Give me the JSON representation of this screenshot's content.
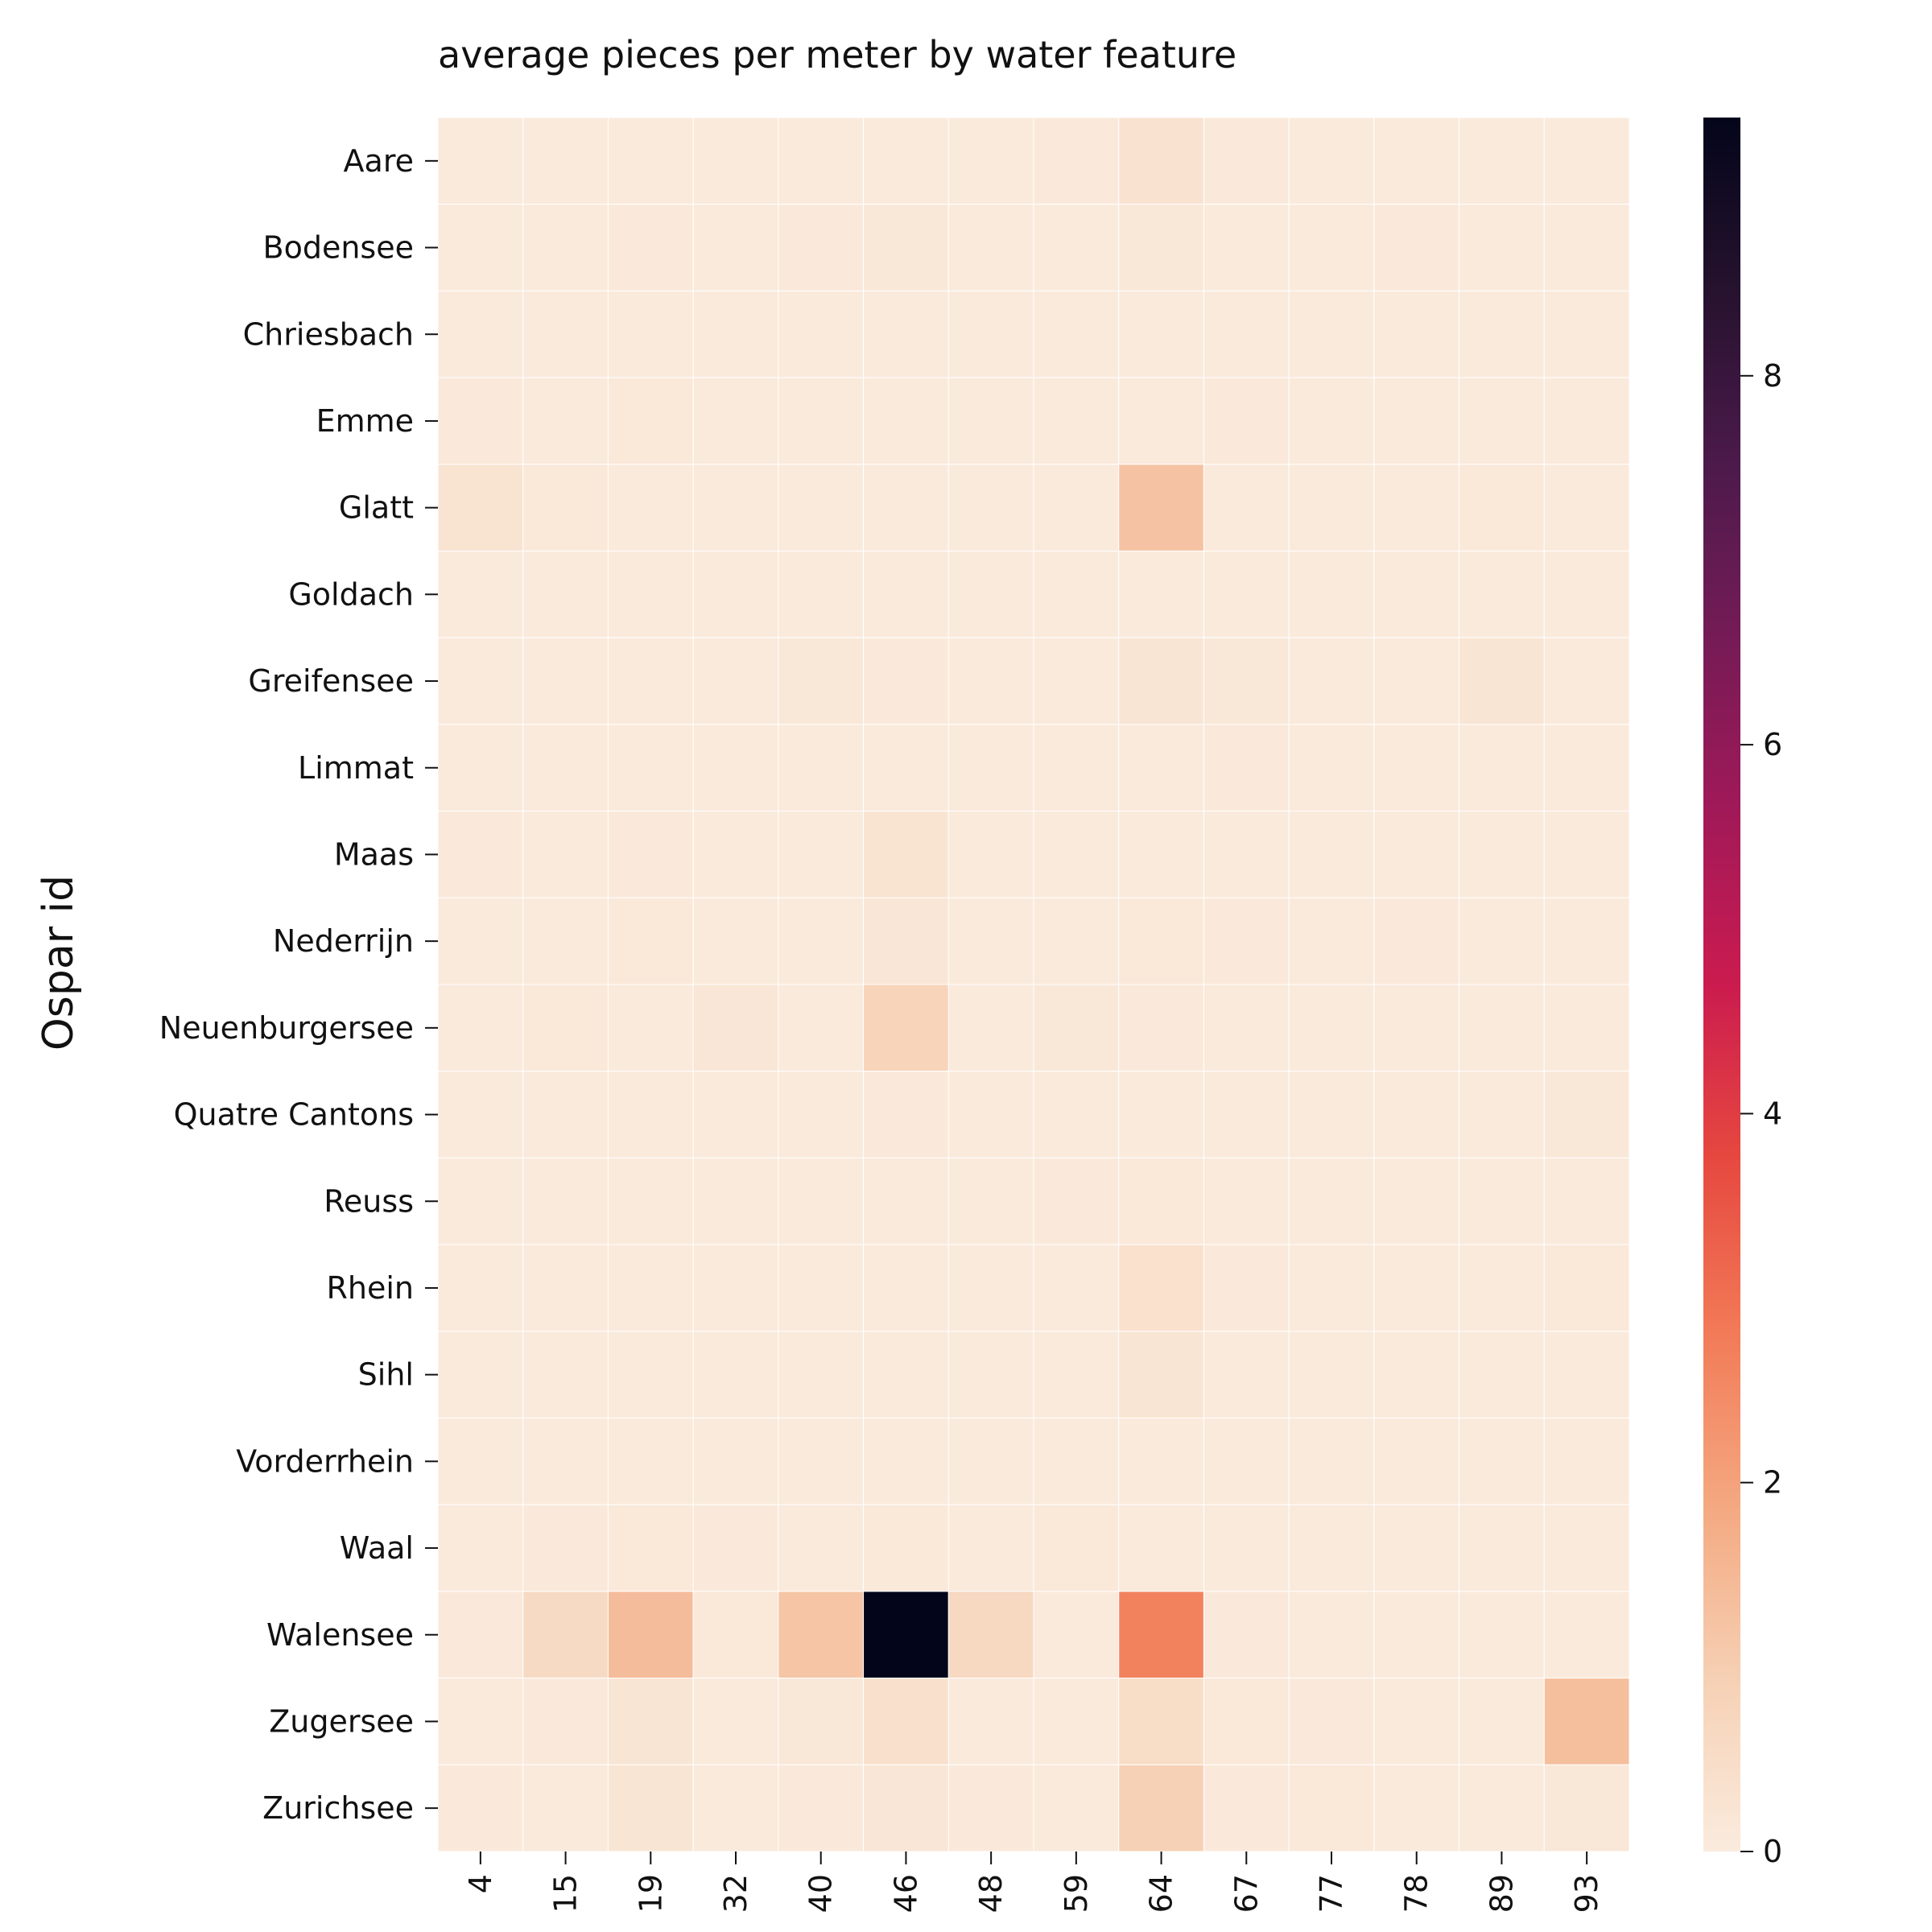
{
  "chart_data": {
    "type": "heatmap",
    "title": "average pieces per meter by water feature",
    "xlabel": "",
    "ylabel": "Ospar id",
    "x_categories": [
      "4",
      "15",
      "19",
      "32",
      "40",
      "46",
      "48",
      "59",
      "64",
      "67",
      "77",
      "78",
      "89",
      "93"
    ],
    "y_categories": [
      "Aare",
      "Bodensee",
      "Chriesbach",
      "Emme",
      "Glatt",
      "Goldach",
      "Greifensee",
      "Limmat",
      "Maas",
      "Nederrijn",
      "Neuenburgersee",
      "Quatre Cantons",
      "Reuss",
      "Rhein",
      "Sihl",
      "Vorderrhein",
      "Waal",
      "Walensee",
      "Zugersee",
      "Zurichsee"
    ],
    "values": [
      [
        0.02,
        0.02,
        0.02,
        0.02,
        0.02,
        0.03,
        0.02,
        0.06,
        0.3,
        0.08,
        0.02,
        0.02,
        0.03,
        0.02
      ],
      [
        0.03,
        0.04,
        0.06,
        0.03,
        0.08,
        0.12,
        0.03,
        0.03,
        0.12,
        0.03,
        0.03,
        0.07,
        0.03,
        0.02
      ],
      [
        0.02,
        0.02,
        0.02,
        0.02,
        0.02,
        0.02,
        0.02,
        0.02,
        0.03,
        0.02,
        0.02,
        0.02,
        0.02,
        0.02
      ],
      [
        0.08,
        0.03,
        0.1,
        0.02,
        0.02,
        0.04,
        0.02,
        0.02,
        0.03,
        0.06,
        0.02,
        0.02,
        0.02,
        0.02
      ],
      [
        0.25,
        0.1,
        0.02,
        0.02,
        0.02,
        0.02,
        0.02,
        0.02,
        1.25,
        0.02,
        0.02,
        0.02,
        0.1,
        0.02
      ],
      [
        0.02,
        0.02,
        0.02,
        0.02,
        0.02,
        0.02,
        0.02,
        0.02,
        0.02,
        0.02,
        0.02,
        0.02,
        0.02,
        0.04
      ],
      [
        0.02,
        0.02,
        0.03,
        0.02,
        0.12,
        0.08,
        0.02,
        0.03,
        0.2,
        0.12,
        0.04,
        0.02,
        0.22,
        0.02
      ],
      [
        0.02,
        0.02,
        0.02,
        0.02,
        0.02,
        0.02,
        0.02,
        0.02,
        0.03,
        0.07,
        0.02,
        0.02,
        0.02,
        0.02
      ],
      [
        0.06,
        0.04,
        0.08,
        0.02,
        0.03,
        0.25,
        0.02,
        0.02,
        0.03,
        0.03,
        0.02,
        0.04,
        0.02,
        0.02
      ],
      [
        0.04,
        0.04,
        0.1,
        0.04,
        0.03,
        0.16,
        0.02,
        0.03,
        0.1,
        0.06,
        0.02,
        0.06,
        0.02,
        0.02
      ],
      [
        0.02,
        0.09,
        0.04,
        0.16,
        0.04,
        0.8,
        0.02,
        0.12,
        0.08,
        0.04,
        0.02,
        0.02,
        0.02,
        0.03
      ],
      [
        0.02,
        0.02,
        0.02,
        0.02,
        0.02,
        0.08,
        0.02,
        0.02,
        0.02,
        0.02,
        0.02,
        0.02,
        0.02,
        0.12
      ],
      [
        0.02,
        0.03,
        0.04,
        0.02,
        0.02,
        0.02,
        0.04,
        0.08,
        0.1,
        0.02,
        0.02,
        0.02,
        0.02,
        0.04
      ],
      [
        0.02,
        0.02,
        0.02,
        0.02,
        0.02,
        0.02,
        0.02,
        0.02,
        0.35,
        0.06,
        0.04,
        0.03,
        0.04,
        0.09
      ],
      [
        0.02,
        0.02,
        0.03,
        0.02,
        0.02,
        0.02,
        0.03,
        0.02,
        0.22,
        0.03,
        0.02,
        0.04,
        0.02,
        0.04
      ],
      [
        0.02,
        0.02,
        0.02,
        0.02,
        0.02,
        0.02,
        0.02,
        0.02,
        0.02,
        0.02,
        0.02,
        0.02,
        0.02,
        0.04
      ],
      [
        0.04,
        0.06,
        0.1,
        0.06,
        0.03,
        0.1,
        0.04,
        0.09,
        0.04,
        0.04,
        0.02,
        0.04,
        0.02,
        0.02
      ],
      [
        0.08,
        0.6,
        1.4,
        0.1,
        1.2,
        9.4,
        0.65,
        0.05,
        2.65,
        0.06,
        0.03,
        0.02,
        0.02,
        0.04
      ],
      [
        0.02,
        0.08,
        0.2,
        0.02,
        0.12,
        0.4,
        0.03,
        0.02,
        0.5,
        0.1,
        0.06,
        0.02,
        0.02,
        1.35
      ],
      [
        0.06,
        0.05,
        0.22,
        0.04,
        0.06,
        0.16,
        0.06,
        0.03,
        0.9,
        0.06,
        0.1,
        0.03,
        0.04,
        0.14
      ]
    ],
    "colorbar": {
      "min": 0,
      "max": 9.4,
      "ticks": [
        0,
        2,
        4,
        6,
        8
      ],
      "colormap": "rocket_r"
    }
  }
}
